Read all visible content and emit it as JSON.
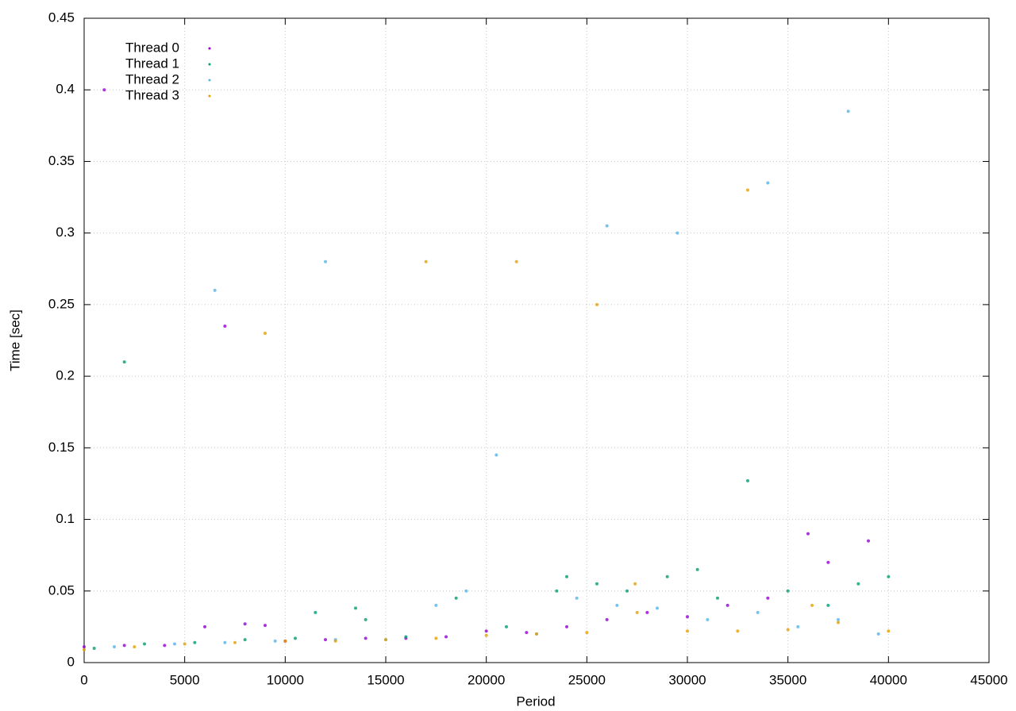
{
  "chart_data": {
    "type": "scatter",
    "x_label": "Period",
    "y_label": "Time [sec]",
    "xlim": [
      0,
      45000
    ],
    "xticks": [
      0,
      5000,
      10000,
      15000,
      20000,
      25000,
      30000,
      35000,
      40000,
      45000
    ],
    "ylim": [
      0,
      0.45
    ],
    "yticks": [
      0,
      0.05,
      0.1,
      0.15,
      0.2,
      0.25,
      0.3,
      0.35,
      0.4,
      0.45
    ],
    "grid": true,
    "legend": "top left",
    "series": [
      {
        "name": "Thread 0",
        "color": "#9400d3",
        "x": [
          0,
          2000,
          4000,
          6000,
          8000,
          9000,
          10000,
          12000,
          14000,
          16000,
          18000,
          20000,
          22000,
          24000,
          26000,
          28000,
          30000,
          32000,
          34000,
          36000,
          37000,
          39000,
          1000,
          7000
        ],
        "values": [
          0.011,
          0.012,
          0.012,
          0.025,
          0.027,
          0.026,
          0.015,
          0.016,
          0.017,
          0.017,
          0.018,
          0.022,
          0.021,
          0.025,
          0.03,
          0.035,
          0.032,
          0.04,
          0.045,
          0.09,
          0.07,
          0.085,
          0.4,
          0.235
        ]
      },
      {
        "name": "Thread 1",
        "color": "#009e73",
        "x": [
          500,
          3000,
          5500,
          8000,
          10500,
          11500,
          13500,
          14000,
          16000,
          18500,
          21000,
          23500,
          24000,
          25500,
          27000,
          29000,
          30500,
          31500,
          33000,
          35000,
          37000,
          38500,
          40000,
          2000
        ],
        "values": [
          0.01,
          0.013,
          0.014,
          0.016,
          0.017,
          0.035,
          0.038,
          0.03,
          0.018,
          0.045,
          0.025,
          0.05,
          0.06,
          0.055,
          0.05,
          0.06,
          0.065,
          0.045,
          0.127,
          0.05,
          0.04,
          0.055,
          0.06,
          0.21
        ]
      },
      {
        "name": "Thread 2",
        "color": "#56b4e9",
        "x": [
          1500,
          4500,
          7000,
          9500,
          12500,
          15000,
          17500,
          19000,
          22500,
          24500,
          26500,
          28500,
          31000,
          33500,
          35500,
          37500,
          39500,
          6500,
          12000,
          20500,
          26000,
          29500,
          34000,
          38000
        ],
        "values": [
          0.011,
          0.013,
          0.014,
          0.015,
          0.016,
          0.016,
          0.04,
          0.05,
          0.02,
          0.045,
          0.04,
          0.038,
          0.03,
          0.035,
          0.025,
          0.03,
          0.02,
          0.26,
          0.28,
          0.145,
          0.305,
          0.3,
          0.335,
          0.385
        ]
      },
      {
        "name": "Thread 3",
        "color": "#e69f00",
        "x": [
          0,
          2500,
          5000,
          7500,
          10000,
          12500,
          15000,
          17500,
          20000,
          22500,
          25000,
          27500,
          30000,
          32500,
          35000,
          37500,
          40000,
          27400,
          36200,
          9000,
          17000,
          21500,
          25500,
          33000
        ],
        "values": [
          0.009,
          0.011,
          0.013,
          0.014,
          0.015,
          0.015,
          0.016,
          0.017,
          0.019,
          0.02,
          0.021,
          0.035,
          0.022,
          0.022,
          0.023,
          0.028,
          0.022,
          0.055,
          0.04,
          0.23,
          0.28,
          0.28,
          0.25,
          0.33
        ]
      }
    ]
  }
}
